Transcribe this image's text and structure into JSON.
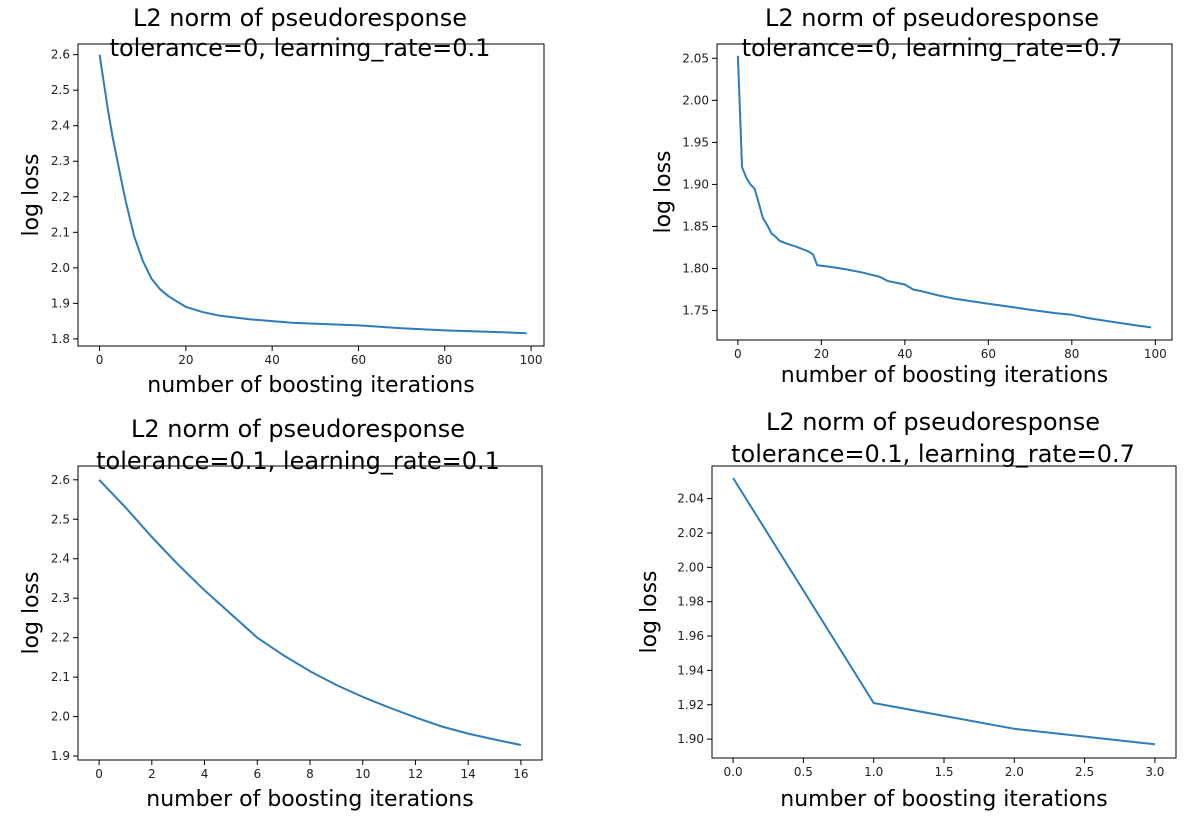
{
  "chart_data": [
    {
      "type": "line",
      "title": "L2 norm of pseudoresponse",
      "subtitle": "tolerance=0, learning_rate=0.1",
      "xlabel": "number of boosting iterations",
      "ylabel": "log loss",
      "xlim": [
        -5,
        103
      ],
      "ylim": [
        1.78,
        2.63
      ],
      "xticks": [
        0,
        20,
        40,
        60,
        80,
        100
      ],
      "xtick_labels": [
        "0",
        "20",
        "40",
        "60",
        "80",
        "100"
      ],
      "yticks": [
        1.8,
        1.9,
        2.0,
        2.1,
        2.2,
        2.3,
        2.4,
        2.5,
        2.6
      ],
      "ytick_labels": [
        "1.8",
        "1.9",
        "2.0",
        "2.1",
        "2.2",
        "2.3",
        "2.4",
        "2.5",
        "2.6"
      ],
      "grid": false,
      "color": "#2e7cb8",
      "x": [
        0,
        1,
        2,
        3,
        4,
        5,
        6,
        8,
        10,
        12,
        14,
        16,
        18,
        20,
        24,
        28,
        35,
        45,
        60,
        70,
        80,
        90,
        99
      ],
      "y": [
        2.6,
        2.52,
        2.44,
        2.37,
        2.31,
        2.25,
        2.19,
        2.09,
        2.02,
        1.97,
        1.94,
        1.92,
        1.905,
        1.89,
        1.875,
        1.865,
        1.855,
        1.845,
        1.838,
        1.83,
        1.824,
        1.82,
        1.816
      ]
    },
    {
      "type": "line",
      "title": "L2 norm of pseudoresponse",
      "subtitle": "tolerance=0, learning_rate=0.7",
      "xlabel": "number of boosting iterations",
      "ylabel": "log loss",
      "xlim": [
        -5,
        104
      ],
      "ylim": [
        1.715,
        2.067
      ],
      "xticks": [
        0,
        20,
        40,
        60,
        80,
        100
      ],
      "xtick_labels": [
        "0",
        "20",
        "40",
        "60",
        "80",
        "100"
      ],
      "yticks": [
        1.75,
        1.8,
        1.85,
        1.9,
        1.95,
        2.0,
        2.05
      ],
      "ytick_labels": [
        "1.75",
        "1.80",
        "1.85",
        "1.90",
        "1.95",
        "2.00",
        "2.05"
      ],
      "grid": false,
      "color": "#2e7cb8",
      "x": [
        0,
        1,
        2,
        3,
        4,
        5,
        6,
        7,
        8,
        9,
        10,
        12,
        14,
        16,
        17,
        18,
        19,
        22,
        26,
        30,
        34,
        36,
        40,
        42,
        44,
        48,
        52,
        56,
        60,
        66,
        70,
        76,
        80,
        84,
        88,
        92,
        96,
        99
      ],
      "y": [
        2.053,
        1.921,
        1.908,
        1.9,
        1.895,
        1.878,
        1.86,
        1.852,
        1.842,
        1.838,
        1.833,
        1.829,
        1.826,
        1.822,
        1.82,
        1.817,
        1.804,
        1.802,
        1.799,
        1.795,
        1.79,
        1.785,
        1.781,
        1.775,
        1.773,
        1.768,
        1.764,
        1.761,
        1.758,
        1.754,
        1.751,
        1.747,
        1.745,
        1.741,
        1.738,
        1.735,
        1.732,
        1.73
      ]
    },
    {
      "type": "line",
      "title": "L2 norm of pseudoresponse",
      "subtitle": "tolerance=0.1, learning_rate=0.1",
      "xlabel": "number of boosting iterations",
      "ylabel": "log loss",
      "xlim": [
        -0.8,
        16.8
      ],
      "ylim": [
        1.89,
        2.635
      ],
      "xticks": [
        0,
        2,
        4,
        6,
        8,
        10,
        12,
        14,
        16
      ],
      "xtick_labels": [
        "0",
        "2",
        "4",
        "6",
        "8",
        "10",
        "12",
        "14",
        "16"
      ],
      "yticks": [
        1.9,
        2.0,
        2.1,
        2.2,
        2.3,
        2.4,
        2.5,
        2.6
      ],
      "ytick_labels": [
        "1.9",
        "2.0",
        "2.1",
        "2.2",
        "2.3",
        "2.4",
        "2.5",
        "2.6"
      ],
      "grid": false,
      "color": "#2e7cb8",
      "x": [
        0,
        1,
        2,
        3,
        4,
        5,
        6,
        7,
        8,
        9,
        10,
        11,
        12,
        13,
        14,
        15,
        16
      ],
      "y": [
        2.6,
        2.53,
        2.455,
        2.385,
        2.32,
        2.26,
        2.2,
        2.155,
        2.115,
        2.08,
        2.05,
        2.023,
        1.998,
        1.975,
        1.957,
        1.942,
        1.928
      ]
    },
    {
      "type": "line",
      "title": "L2 norm of pseudoresponse",
      "subtitle": "tolerance=0.1, learning_rate=0.7",
      "xlabel": "number of boosting iterations",
      "ylabel": "log loss",
      "xlim": [
        -0.15,
        3.15
      ],
      "ylim": [
        1.889,
        2.059
      ],
      "xticks": [
        0,
        0.5,
        1,
        1.5,
        2,
        2.5,
        3
      ],
      "xtick_labels": [
        "0.0",
        "0.5",
        "1.0",
        "1.5",
        "2.0",
        "2.5",
        "3.0"
      ],
      "yticks": [
        1.9,
        1.92,
        1.94,
        1.96,
        1.98,
        2.0,
        2.02,
        2.04
      ],
      "ytick_labels": [
        "1.90",
        "1.92",
        "1.94",
        "1.96",
        "1.98",
        "2.00",
        "2.02",
        "2.04"
      ],
      "grid": false,
      "color": "#2e7cb8",
      "x": [
        0,
        1,
        2,
        3
      ],
      "y": [
        2.052,
        1.921,
        1.906,
        1.897
      ]
    }
  ]
}
